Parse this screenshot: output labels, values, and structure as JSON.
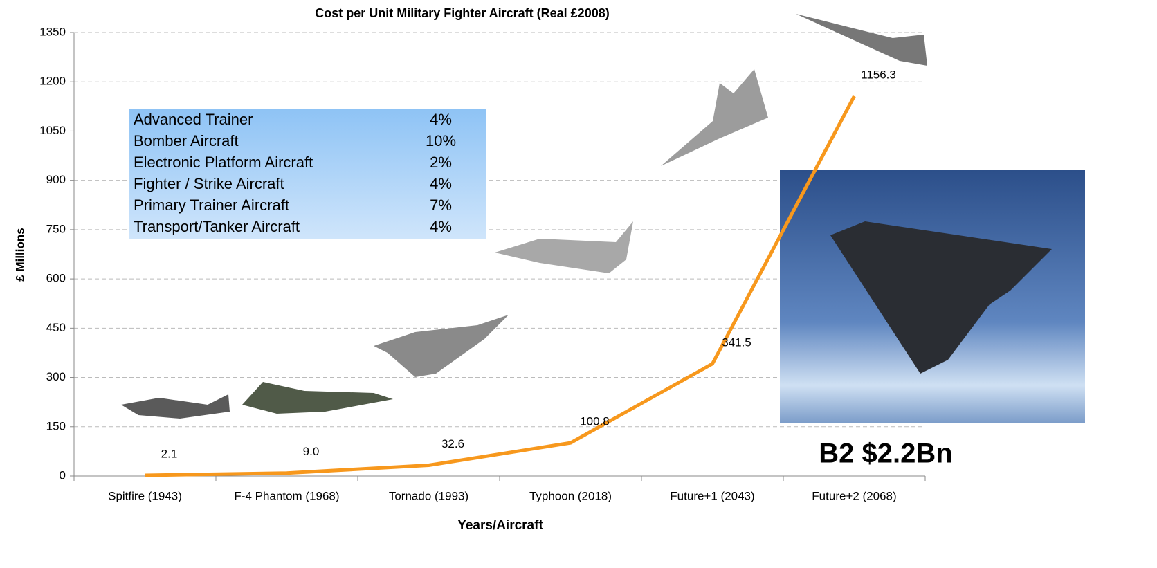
{
  "chart_data": {
    "type": "line",
    "title": "Cost per Unit Military Fighter Aircraft (Real £2008)",
    "x_label": "Years/Aircraft",
    "y_label": "£ Millions",
    "categories": [
      "Spitfire (1943)",
      "F-4 Phantom (1968)",
      "Tornado (1993)",
      "Typhoon (2018)",
      "Future+1 (2043)",
      "Future+2 (2068)"
    ],
    "values": [
      2.1,
      9.0,
      32.6,
      100.8,
      341.5,
      1156.3
    ],
    "value_labels": [
      "2.1",
      "9.0",
      "32.6",
      "100.8",
      "341.5",
      "1156.3"
    ],
    "color": "#f7981d",
    "ylim": [
      0,
      1350
    ],
    "yticks": [
      0,
      150,
      300,
      450,
      600,
      750,
      900,
      1050,
      1200,
      1350
    ],
    "grid": true,
    "annotation_table": {
      "rows": [
        [
          "Advanced Trainer",
          "4%"
        ],
        [
          "Bomber Aircraft",
          "10%"
        ],
        [
          "Electronic Platform Aircraft",
          "2%"
        ],
        [
          "Fighter / Strike Aircraft",
          "4%"
        ],
        [
          "Primary Trainer Aircraft",
          "7%"
        ],
        [
          "Transport/Tanker Aircraft",
          "4%"
        ]
      ]
    },
    "annotation": "B2 $2.2Bn"
  }
}
